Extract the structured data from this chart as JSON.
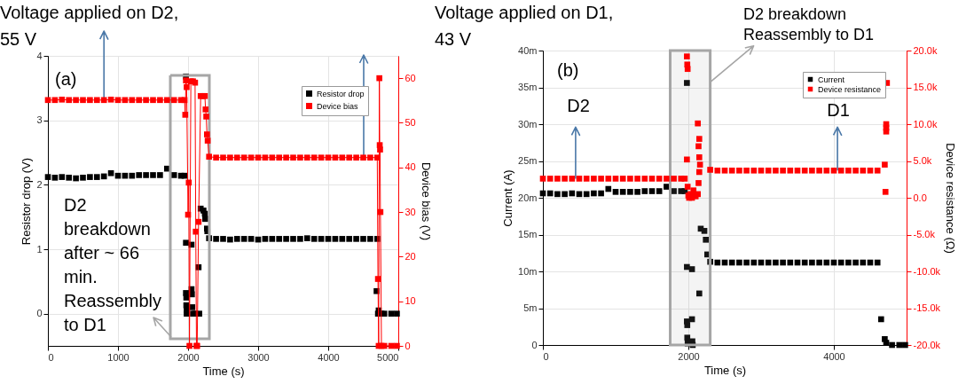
{
  "chart_data": [
    {
      "type": "scatter",
      "xlabel": "Time (s)",
      "ylabel": "Resistor drop (V)",
      "y2label": "Device bias (V)",
      "xlim": [
        0,
        5000
      ],
      "xticks": [
        0,
        1000,
        2000,
        3000,
        4000,
        5000
      ],
      "ylim": [
        -0.5,
        4
      ],
      "yticks": [
        0,
        1,
        2,
        3,
        4
      ],
      "y2lim": [
        0,
        65
      ],
      "y2ticks": [
        0,
        10,
        20,
        30,
        40,
        50,
        60
      ],
      "grid": true,
      "legend": "top right",
      "marker": "square",
      "series": [
        {
          "name": "Resistor drop",
          "color": "#000000",
          "x": [
            0,
            100,
            200,
            300,
            400,
            500,
            600,
            700,
            800,
            900,
            1000,
            1100,
            1200,
            1300,
            1400,
            1500,
            1600,
            1700,
            1800,
            1900,
            1950,
            1970,
            1970,
            1970,
            1975,
            1975,
            1980,
            1980,
            2050,
            2050,
            2055,
            2060,
            2070,
            2100,
            2150,
            2160,
            2180,
            2220,
            2240,
            2245,
            2270,
            2275,
            2300,
            2400,
            2500,
            2600,
            2700,
            2800,
            2900,
            3000,
            3100,
            3200,
            3300,
            3400,
            3500,
            3600,
            3700,
            3800,
            3900,
            4000,
            4100,
            4200,
            4300,
            4400,
            4500,
            4600,
            4700,
            4690,
            4710,
            4720,
            4760,
            4800,
            4900,
            4980
          ],
          "values": [
            2.12,
            2.11,
            2.12,
            2.11,
            2.1,
            2.11,
            2.12,
            2.12,
            2.13,
            2.18,
            2.14,
            2.14,
            2.14,
            2.15,
            2.15,
            2.15,
            2.15,
            2.25,
            2.15,
            2.14,
            2.14,
            3.68,
            1.1,
            0.32,
            0.25,
            0.13,
            0.05,
            0.0,
            1.07,
            0.38,
            0.3,
            0.1,
            0.0,
            0.0,
            0.72,
            0.0,
            1.63,
            1.6,
            1.55,
            1.47,
            1.32,
            1.28,
            1.17,
            1.16,
            1.16,
            1.15,
            1.16,
            1.16,
            1.16,
            1.15,
            1.16,
            1.16,
            1.16,
            1.16,
            1.16,
            1.16,
            1.17,
            1.16,
            1.16,
            1.16,
            1.16,
            1.16,
            1.16,
            1.16,
            1.16,
            1.16,
            1.16,
            0.35,
            0.0,
            0.05,
            0.0,
            0.0,
            0.0,
            0.0
          ]
        },
        {
          "name": "Device bias",
          "color": "#ff0000",
          "type": "line",
          "axis": "y2",
          "x": [
            0,
            100,
            200,
            300,
            400,
            500,
            600,
            700,
            800,
            900,
            1000,
            1100,
            1200,
            1300,
            1400,
            1500,
            1600,
            1700,
            1800,
            1900,
            1950,
            1960,
            1970,
            1980,
            2000,
            2010,
            2020,
            2040,
            2070,
            2100,
            2110,
            2120,
            2130,
            2150,
            2180,
            2210,
            2240,
            2250,
            2260,
            2270,
            2280,
            2300,
            2400,
            2500,
            2600,
            2700,
            2800,
            2900,
            3000,
            3100,
            3200,
            3300,
            3400,
            3500,
            3600,
            3700,
            3800,
            3900,
            4000,
            4100,
            4200,
            4300,
            4400,
            4500,
            4600,
            4700,
            4710,
            4720,
            4730,
            4735,
            4740,
            4745,
            4760,
            4800,
            4900,
            4980
          ],
          "values": [
            55.1,
            55.1,
            55.2,
            55.1,
            55.1,
            55.1,
            55.1,
            55.1,
            55.1,
            55.2,
            55.1,
            55.1,
            55.1,
            55.1,
            55.1,
            55.1,
            55.1,
            55.1,
            55.1,
            55.1,
            55.1,
            51.8,
            59.5,
            58,
            29.4,
            36.6,
            0,
            59.3,
            59.3,
            59,
            25.6,
            0,
            0,
            27.8,
            56,
            56,
            56,
            53,
            51.4,
            47.4,
            46,
            42.4,
            42.2,
            42.2,
            42.2,
            42.2,
            42.2,
            42.2,
            42.2,
            42.2,
            42.2,
            42.2,
            42.2,
            42.2,
            42.2,
            42.2,
            42.2,
            42.2,
            42.2,
            42.2,
            42.2,
            42.2,
            42.2,
            42.2,
            42.2,
            42.2,
            15,
            0,
            60,
            45,
            44,
            30,
            0,
            0,
            0,
            0
          ]
        }
      ],
      "annotations": [
        "(a)",
        {
          "text": "Voltage applied on D2,\n55 V",
          "x": 800,
          "y": 3.31
        },
        "Voltage applied on D1,\n43 V",
        "D2\nbreakdown\nafter ~ 66\nmin.\nReassembly\nto D1"
      ]
    },
    {
      "type": "scatter",
      "xlabel": "Time (s)",
      "ylabel": "Current (A)",
      "y2label": "Device resistance (Ω)",
      "xlim": [
        0,
        5000
      ],
      "xticks": [
        0,
        2000,
        4000
      ],
      "ylim": [
        0,
        40
      ],
      "yticks": [
        0,
        {
          "value": 5,
          "label": "5m"
        },
        {
          "value": 10,
          "label": "10m"
        },
        {
          "value": 15,
          "label": "15m"
        },
        {
          "value": 20,
          "label": "20m"
        },
        {
          "value": 25,
          "label": "25m"
        },
        {
          "value": 30,
          "label": "30m"
        },
        {
          "value": 35,
          "label": "35m"
        },
        {
          "value": 40,
          "label": "40m"
        }
      ],
      "y2lim": [
        -20,
        20
      ],
      "y2ticks": [
        {
          "value": -20,
          "label": "-20.0k"
        },
        {
          "value": -15,
          "label": "-15.0k"
        },
        {
          "value": -10,
          "label": "-10.0k"
        },
        {
          "value": -5,
          "label": "-5.0k"
        },
        {
          "value": 0,
          "label": "0.0"
        },
        {
          "value": 5,
          "label": "5.0k"
        },
        {
          "value": 10,
          "label": "10.0k"
        },
        {
          "value": 15,
          "label": "15.0k"
        },
        {
          "value": 20,
          "label": "20.0k"
        }
      ],
      "grid": true,
      "legend": "top right",
      "marker": "square",
      "series": [
        {
          "name": "Current",
          "color": "#000000",
          "x": [
            0,
            100,
            200,
            300,
            400,
            500,
            600,
            700,
            800,
            900,
            1000,
            1100,
            1200,
            1300,
            1400,
            1500,
            1600,
            1700,
            1800,
            1900,
            1950,
            1980,
            1980,
            1980,
            1985,
            1985,
            1990,
            2050,
            2050,
            2055,
            2060,
            2150,
            2170,
            2220,
            2240,
            2260,
            2300,
            2400,
            2500,
            2600,
            2700,
            2800,
            2900,
            3000,
            3100,
            3200,
            3300,
            3400,
            3500,
            3600,
            3700,
            3800,
            3900,
            4000,
            4100,
            4200,
            4300,
            4400,
            4500,
            4600,
            4650,
            4700,
            4720,
            4800,
            4900,
            4980
          ],
          "values": [
            20.6,
            20.6,
            20.5,
            20.5,
            20.6,
            20.5,
            20.5,
            20.6,
            20.6,
            21.2,
            20.8,
            20.8,
            20.8,
            20.8,
            20.9,
            20.9,
            20.9,
            21.5,
            20.9,
            20.9,
            20.9,
            35.6,
            10.6,
            3.2,
            2.7,
            1.0,
            0.2,
            10.3,
            3.5,
            0.5,
            0,
            7.0,
            15.8,
            15.5,
            14.3,
            12.3,
            11.3,
            11.2,
            11.2,
            11.2,
            11.2,
            11.2,
            11.2,
            11.2,
            11.2,
            11.2,
            11.2,
            11.2,
            11.2,
            11.2,
            11.2,
            11.2,
            11.2,
            11.2,
            11.2,
            11.2,
            11.2,
            11.2,
            11.2,
            11.2,
            3.5,
            0.8,
            0.3,
            0,
            0,
            0
          ]
        },
        {
          "name": "Device resistance",
          "color": "#ff0000",
          "axis": "y2",
          "x": [
            0,
            100,
            200,
            300,
            400,
            500,
            600,
            700,
            800,
            900,
            1000,
            1100,
            1200,
            1300,
            1400,
            1500,
            1600,
            1700,
            1800,
            1900,
            1950,
            1980,
            1985,
            1990,
            1980,
            1990,
            2000,
            2010,
            2030,
            2050,
            2070,
            2100,
            2130,
            2150,
            2140,
            2150,
            2160,
            2150,
            2140,
            2130,
            2300,
            2400,
            2500,
            2600,
            2700,
            2800,
            2900,
            3000,
            3100,
            3200,
            3300,
            3400,
            3500,
            3600,
            3700,
            3800,
            3900,
            4000,
            4100,
            4200,
            4300,
            4400,
            4500,
            4600,
            4700,
            4720,
            4720,
            4720,
            4710,
            4730
          ],
          "values": [
            2.6,
            2.6,
            2.6,
            2.6,
            2.6,
            2.6,
            2.6,
            2.6,
            2.6,
            2.6,
            2.6,
            2.6,
            2.6,
            2.6,
            2.6,
            2.6,
            2.6,
            2.6,
            2.6,
            2.6,
            2.6,
            19.2,
            18.1,
            17.5,
            5.2,
            1.5,
            0.3,
            0,
            0.5,
            0,
            1.0,
            0.2,
            10.1,
            8.0,
            7.0,
            5.5,
            4.5,
            3.5,
            2.0,
            0.5,
            3.8,
            3.7,
            3.7,
            3.7,
            3.7,
            3.7,
            3.7,
            3.7,
            3.7,
            3.7,
            3.7,
            3.7,
            3.7,
            3.7,
            3.7,
            3.7,
            3.7,
            3.7,
            3.7,
            3.7,
            3.7,
            3.7,
            3.7,
            3.7,
            4.5,
            10.0,
            9.5,
            9.0,
            0.8,
            15.6
          ]
        }
      ],
      "bands": [
        {
          "axis": "x",
          "from": 1750,
          "to": 2300,
          "color": "#a6a6a6"
        }
      ],
      "annotations": [
        "(b)",
        {
          "text": "D2",
          "x": 450,
          "y": 22.6
        },
        {
          "text": "D1",
          "x": 4050,
          "y": 23.7
        },
        {
          "text": "D2 breakdown\nReassembly to D1",
          "x": 2300,
          "y": 35.7
        }
      ]
    }
  ]
}
